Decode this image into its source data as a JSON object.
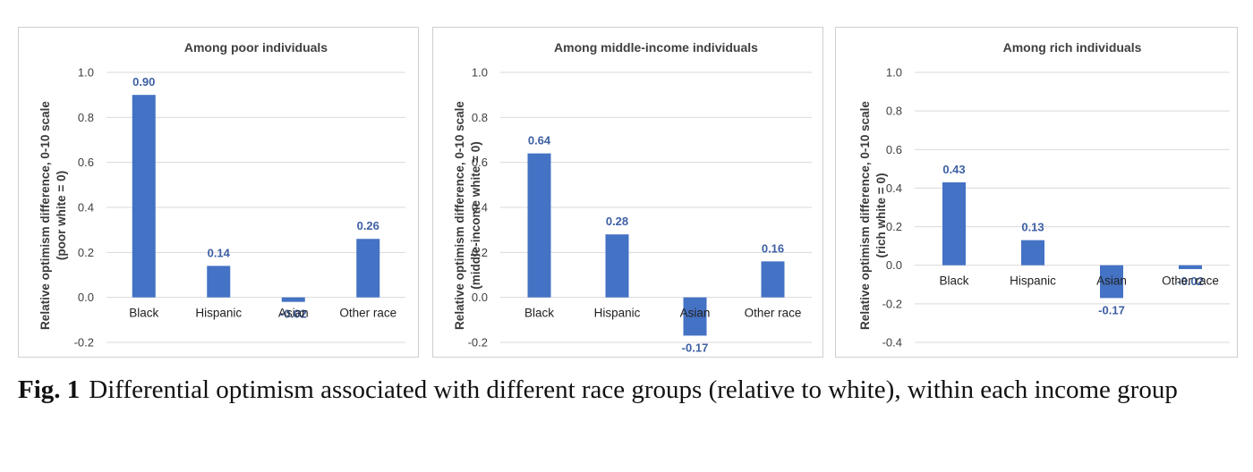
{
  "colors": {
    "bar": "#4472c4",
    "data_label": "#3d5fa3",
    "grid": "#d9d9d9",
    "border": "#cfcfcf"
  },
  "chart_data": [
    {
      "type": "bar",
      "title": "Among poor individuals",
      "ylabel_line1": "Relative optimism difference, 0-10 scale",
      "ylabel_line2": "(poor white = 0)",
      "categories": [
        "Black",
        "Hispanic",
        "Asian",
        "Other race"
      ],
      "values": [
        0.9,
        0.14,
        -0.02,
        0.26
      ],
      "value_labels": [
        "0.90",
        "0.14",
        "-0.02",
        "0.26"
      ],
      "yticks": [
        "1.0",
        "0.8",
        "0.6",
        "0.4",
        "0.2",
        "0.0",
        "-0.2"
      ],
      "ylim": [
        -0.2,
        1.0
      ],
      "grid": true,
      "legend": "none"
    },
    {
      "type": "bar",
      "title": "Among middle-income individuals",
      "ylabel_line1": "Relative optimism difference, 0-10 scale",
      "ylabel_line2": "(middle-income white = 0)",
      "categories": [
        "Black",
        "Hispanic",
        "Asian",
        "Other race"
      ],
      "values": [
        0.64,
        0.28,
        -0.17,
        0.16
      ],
      "value_labels": [
        "0.64",
        "0.28",
        "-0.17",
        "0.16"
      ],
      "yticks": [
        "1.0",
        "0.8",
        "0.6",
        "0.4",
        "0.2",
        "0.0",
        "-0.2"
      ],
      "ylim": [
        -0.2,
        1.0
      ],
      "grid": true,
      "legend": "none"
    },
    {
      "type": "bar",
      "title": "Among rich individuals",
      "ylabel_line1": "Relative optimism difference, 0-10 scale",
      "ylabel_line2": "(rich white = 0)",
      "categories": [
        "Black",
        "Hispanic",
        "Asian",
        "Other race"
      ],
      "values": [
        0.43,
        0.13,
        -0.17,
        -0.02
      ],
      "value_labels": [
        "0.43",
        "0.13",
        "-0.17",
        "-0.02"
      ],
      "yticks": [
        "1.0",
        "0.8",
        "0.6",
        "0.4",
        "0.2",
        "0.0",
        "-0.2",
        "-0.4"
      ],
      "ylim": [
        -0.4,
        1.0
      ],
      "grid": true,
      "legend": "none"
    }
  ],
  "caption": {
    "label": "Fig. 1",
    "text": "Differential optimism associated with different race groups (relative to white), within each income group"
  }
}
